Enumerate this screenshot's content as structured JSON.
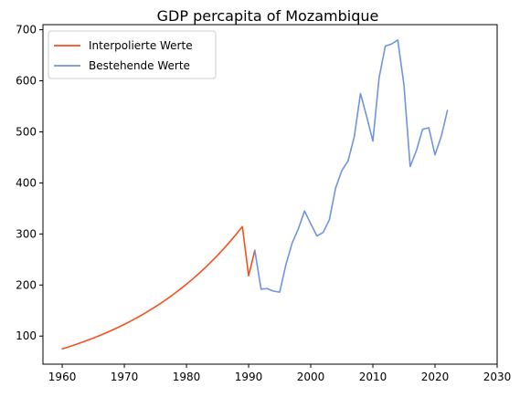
{
  "chart_data": {
    "type": "line",
    "title": "GDP percapita of Mozambique",
    "xlabel": "",
    "ylabel": "",
    "xlim": [
      1956.9,
      2030
    ],
    "ylim": [
      45,
      710
    ],
    "xticks": [
      1960,
      1970,
      1980,
      1990,
      2000,
      2010,
      2020,
      2030
    ],
    "yticks": [
      100,
      200,
      300,
      400,
      500,
      600,
      700
    ],
    "grid": false,
    "legend_position": "top-left",
    "series": [
      {
        "name": "Interpolierte Werte",
        "color": "#f4511e",
        "x": [
          1960,
          1961,
          1962,
          1963,
          1964,
          1965,
          1966,
          1967,
          1968,
          1969,
          1970,
          1971,
          1972,
          1973,
          1974,
          1975,
          1976,
          1977,
          1978,
          1979,
          1980,
          1981,
          1982,
          1983,
          1984,
          1985,
          1986,
          1987,
          1988,
          1989,
          1990,
          1991
        ],
        "y": [
          75,
          78.8,
          82.8,
          87.0,
          91.4,
          96.0,
          100.9,
          106.0,
          111.4,
          117.0,
          123.0,
          129.2,
          135.8,
          142.6,
          149.9,
          157.5,
          165.4,
          173.8,
          182.6,
          191.9,
          201.6,
          211.8,
          222.6,
          233.8,
          245.7,
          258.1,
          271.2,
          284.9,
          299.4,
          314.5,
          218,
          268
        ]
      },
      {
        "name": "Bestehende Werte",
        "color": "#6f94e0",
        "x": [
          1991,
          1992,
          1993,
          1994,
          1995,
          1996,
          1997,
          1998,
          1999,
          2000,
          2001,
          2002,
          2003,
          2004,
          2005,
          2006,
          2007,
          2008,
          2009,
          2010,
          2011,
          2012,
          2013,
          2014,
          2015,
          2016,
          2017,
          2018,
          2019,
          2020,
          2021,
          2022
        ],
        "y": [
          268,
          192,
          193,
          188,
          186,
          240,
          282,
          310,
          345,
          320,
          296,
          303,
          328,
          390,
          424,
          443,
          490,
          575,
          530,
          482,
          606,
          668,
          672,
          680,
          592,
          432,
          463,
          505,
          508,
          455,
          491,
          542
        ]
      }
    ]
  }
}
